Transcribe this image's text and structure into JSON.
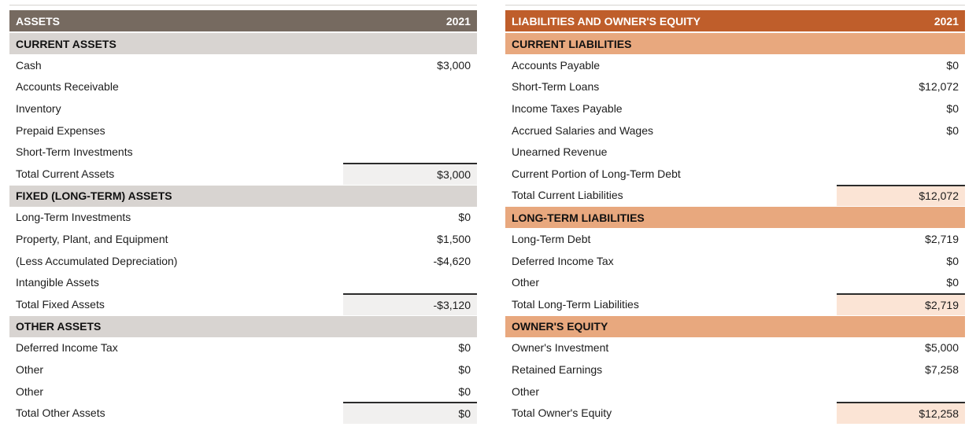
{
  "left_table": {
    "header": {
      "title": "ASSETS",
      "year": "2021"
    },
    "colors": {
      "header_bg": "#766A60",
      "header_text": "#ffffff",
      "section_bg": "#D8D4D1",
      "total_cell_bg": "#F1F0EF",
      "total_rule": "#2b2b2b"
    },
    "sections": [
      {
        "label": "CURRENT ASSETS",
        "rows": [
          {
            "label": "Cash",
            "value": "$3,000"
          },
          {
            "label": "Accounts Receivable",
            "value": ""
          },
          {
            "label": "Inventory",
            "value": ""
          },
          {
            "label": "Prepaid Expenses",
            "value": ""
          },
          {
            "label": "Short-Term Investments",
            "value": ""
          }
        ],
        "total": {
          "label": "Total Current Assets",
          "value": "$3,000"
        }
      },
      {
        "label": "FIXED (LONG-TERM) ASSETS",
        "rows": [
          {
            "label": "Long-Term Investments",
            "value": "$0"
          },
          {
            "label": "Property, Plant, and Equipment",
            "value": "$1,500"
          },
          {
            "label": "(Less Accumulated Depreciation)",
            "value": "-$4,620"
          },
          {
            "label": "Intangible Assets",
            "value": ""
          }
        ],
        "total": {
          "label": "Total Fixed Assets",
          "value": "-$3,120"
        }
      },
      {
        "label": "OTHER ASSETS",
        "rows": [
          {
            "label": "Deferred Income Tax",
            "value": "$0"
          },
          {
            "label": "Other",
            "value": "$0"
          },
          {
            "label": "Other",
            "value": "$0"
          }
        ],
        "total": {
          "label": "Total Other Assets",
          "value": "$0"
        }
      }
    ]
  },
  "right_table": {
    "header": {
      "title": "LIABILITIES AND OWNER'S EQUITY",
      "year": "2021"
    },
    "colors": {
      "header_bg": "#BF5E2B",
      "header_text": "#ffffff",
      "section_bg": "#E8A87E",
      "total_cell_bg": "#FBE4D5",
      "total_rule": "#2b2b2b"
    },
    "sections": [
      {
        "label": "CURRENT LIABILITIES",
        "rows": [
          {
            "label": "Accounts Payable",
            "value": "$0"
          },
          {
            "label": "Short-Term Loans",
            "value": "$12,072"
          },
          {
            "label": "Income Taxes Payable",
            "value": "$0"
          },
          {
            "label": "Accrued Salaries and Wages",
            "value": "$0"
          },
          {
            "label": "Unearned Revenue",
            "value": ""
          },
          {
            "label": "Current Portion of Long-Term Debt",
            "value": ""
          }
        ],
        "total": {
          "label": "Total Current Liabilities",
          "value": "$12,072"
        }
      },
      {
        "label": "LONG-TERM LIABILITIES",
        "rows": [
          {
            "label": "Long-Term Debt",
            "value": "$2,719"
          },
          {
            "label": "Deferred Income Tax",
            "value": "$0"
          },
          {
            "label": "Other",
            "value": "$0"
          }
        ],
        "total": {
          "label": "Total Long-Term Liabilities",
          "value": "$2,719"
        }
      },
      {
        "label": "OWNER'S EQUITY",
        "rows": [
          {
            "label": "Owner's Investment",
            "value": "$5,000"
          },
          {
            "label": "Retained Earnings",
            "value": "$7,258"
          },
          {
            "label": "Other",
            "value": ""
          }
        ],
        "total": {
          "label": "Total Owner's Equity",
          "value": "$12,258"
        }
      }
    ]
  }
}
